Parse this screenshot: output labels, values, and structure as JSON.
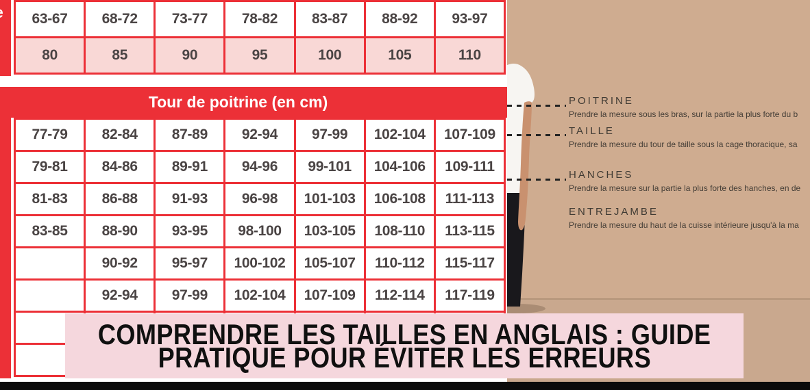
{
  "size_chart": {
    "row_label_fragment": "e",
    "top_table": {
      "ranges_row": [
        "63-67",
        "68-72",
        "73-77",
        "78-82",
        "83-87",
        "88-92",
        "93-97"
      ],
      "sizes_row": [
        "80",
        "85",
        "90",
        "95",
        "100",
        "105",
        "110"
      ]
    },
    "chest_header": "Tour de poitrine (en cm)",
    "chest_table_rows": [
      [
        "77-79",
        "82-84",
        "87-89",
        "92-94",
        "97-99",
        "102-104",
        "107-109"
      ],
      [
        "79-81",
        "84-86",
        "89-91",
        "94-96",
        "99-101",
        "104-106",
        "109-111"
      ],
      [
        "81-83",
        "86-88",
        "91-93",
        "96-98",
        "101-103",
        "106-108",
        "111-113"
      ],
      [
        "83-85",
        "88-90",
        "93-95",
        "98-100",
        "103-105",
        "108-110",
        "113-115"
      ],
      [
        "",
        "90-92",
        "95-97",
        "100-102",
        "105-107",
        "110-112",
        "115-117"
      ],
      [
        "",
        "92-94",
        "97-99",
        "102-104",
        "107-109",
        "112-114",
        "117-119"
      ],
      [
        "",
        "",
        "",
        "",
        "",
        "",
        ""
      ],
      [
        "",
        "",
        "",
        "",
        "",
        "",
        ""
      ]
    ]
  },
  "measurement_guide": {
    "items": [
      {
        "label": "POITRINE",
        "description": "Prendre la mesure sous les bras, sur la partie la plus forte du b"
      },
      {
        "label": "TAILLE",
        "description": "Prendre la mesure du tour de taille sous la cage thoracique, sa"
      },
      {
        "label": "HANCHES",
        "description": "Prendre la mesure sur la partie la plus forte des hanches, en de"
      },
      {
        "label": "ENTREJAMBE",
        "description": "Prendre la mesure du haut de la cuisse intérieure jusqu'à la ma"
      }
    ]
  },
  "banner": {
    "line1": "COMPRENDRE LES TAILLES EN ANGLAIS : GUIDE",
    "line2": "PRATIQUE POUR ÉVITER LES ERREURS"
  },
  "colors": {
    "table_red": "#ec3037",
    "table_pink": "#f9d8d6",
    "banner_pink": "#f5d7dd",
    "wall_tan": "#cfac90",
    "floor_tan": "#c9a88e",
    "cell_text": "#4a4444"
  }
}
